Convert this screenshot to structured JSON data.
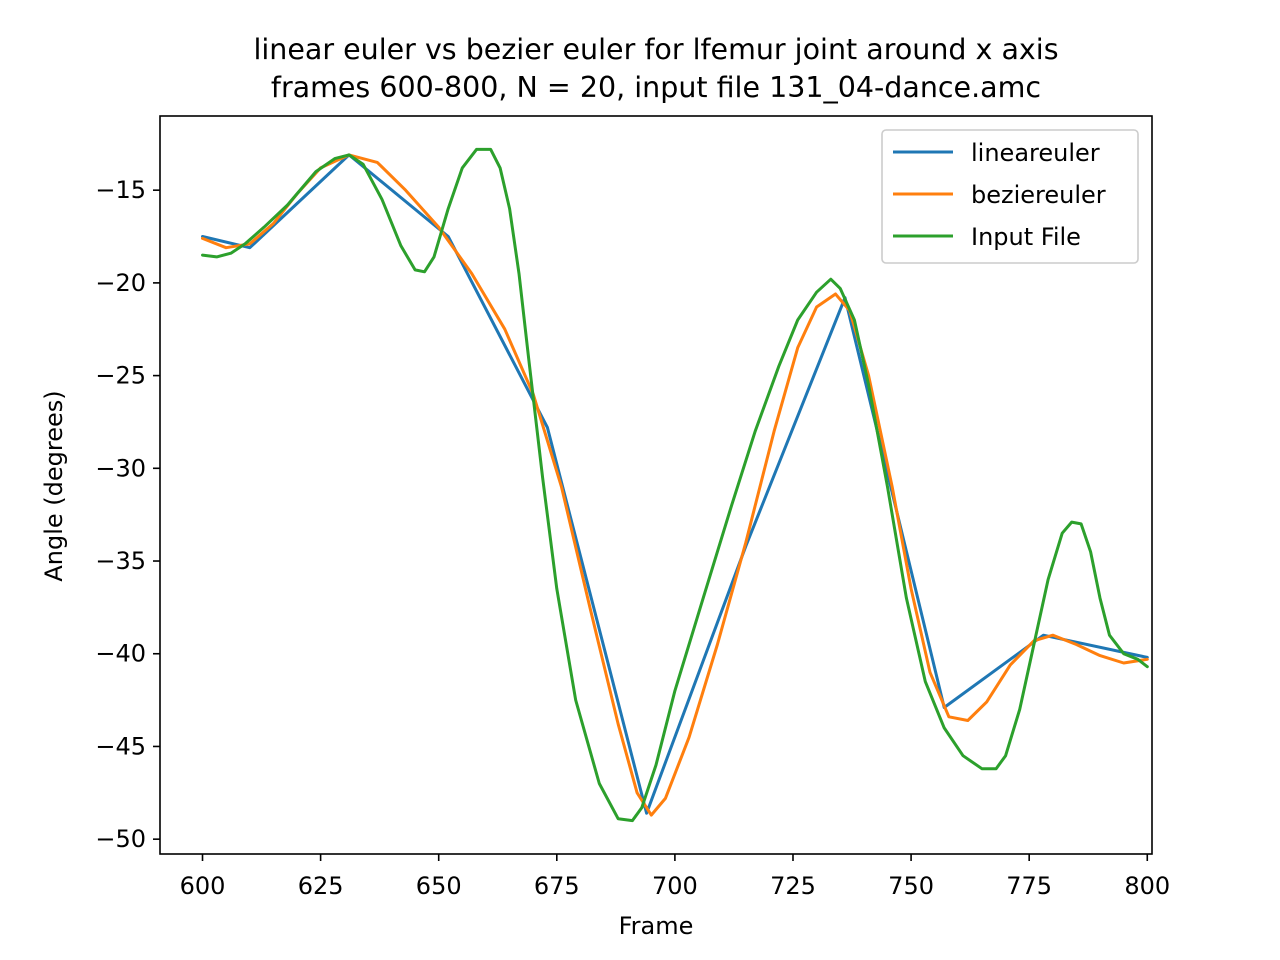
{
  "chart_data": {
    "type": "line",
    "title": "linear euler vs bezier euler for lfemur joint around x axis",
    "subtitle": "frames 600-800, N = 20, input file 131_04-dance.amc",
    "xlabel": "Frame",
    "ylabel": "Angle (degrees)",
    "xlim": [
      591,
      801
    ],
    "ylim": [
      -50.8,
      -11.0
    ],
    "xticks": [
      600,
      625,
      650,
      675,
      700,
      725,
      750,
      775,
      800
    ],
    "yticks": [
      -15,
      -20,
      -25,
      -30,
      -35,
      -40,
      -45,
      -50
    ],
    "xtick_labels": [
      "600",
      "625",
      "650",
      "675",
      "700",
      "725",
      "750",
      "775",
      "800"
    ],
    "ytick_labels": [
      "−15",
      "−20",
      "−25",
      "−30",
      "−35",
      "−40",
      "−45",
      "−50"
    ],
    "grid": false,
    "legend_position": "top-right",
    "series": [
      {
        "name": "lineareuler",
        "color": "#1f77b4",
        "x": [
          600,
          610,
          631,
          652,
          673,
          694,
          715,
          736,
          757,
          778,
          800
        ],
        "y": [
          -17.5,
          -18.1,
          -13.1,
          -17.5,
          -27.8,
          -48.6,
          -34.2,
          -20.8,
          -42.9,
          -39.0,
          -40.2
        ]
      },
      {
        "name": "beziereuler",
        "color": "#ff7f0e",
        "x": [
          600,
          605,
          610,
          615,
          620,
          625,
          631,
          637,
          643,
          650,
          657,
          664,
          670,
          676,
          682,
          688,
          692,
          695,
          698,
          703,
          709,
          715,
          721,
          726,
          730,
          734,
          737,
          741,
          746,
          750,
          754,
          758,
          762,
          766,
          771,
          776,
          780,
          785,
          790,
          795,
          800
        ],
        "y": [
          -17.6,
          -18.1,
          -17.9,
          -16.8,
          -15.2,
          -13.8,
          -13.1,
          -13.5,
          -15.0,
          -17.0,
          -19.5,
          -22.5,
          -26.0,
          -31.0,
          -37.5,
          -43.8,
          -47.5,
          -48.7,
          -47.8,
          -44.5,
          -39.5,
          -34.0,
          -28.0,
          -23.5,
          -21.3,
          -20.6,
          -21.5,
          -25.0,
          -31.0,
          -36.5,
          -41.0,
          -43.4,
          -43.6,
          -42.6,
          -40.6,
          -39.3,
          -39.0,
          -39.5,
          -40.1,
          -40.5,
          -40.3
        ]
      },
      {
        "name": "Input File",
        "color": "#2ca02c",
        "x": [
          600,
          603,
          606,
          609,
          613,
          618,
          624,
          628,
          631,
          634,
          638,
          642,
          645,
          647,
          649,
          652,
          655,
          658,
          661,
          663,
          665,
          667,
          669,
          672,
          675,
          679,
          684,
          688,
          691,
          693,
          696,
          700,
          706,
          712,
          717,
          722,
          726,
          730,
          733,
          735,
          738,
          741,
          745,
          749,
          753,
          757,
          761,
          765,
          768,
          770,
          773,
          776,
          779,
          782,
          784,
          786,
          788,
          790,
          792,
          795,
          798,
          800
        ],
        "y": [
          -18.5,
          -18.6,
          -18.4,
          -17.9,
          -17.0,
          -15.8,
          -14.0,
          -13.3,
          -13.1,
          -13.6,
          -15.5,
          -18.0,
          -19.3,
          -19.4,
          -18.6,
          -16.0,
          -13.8,
          -12.8,
          -12.8,
          -13.8,
          -16.0,
          -19.5,
          -24.0,
          -30.5,
          -36.5,
          -42.5,
          -47.0,
          -48.9,
          -49.0,
          -48.3,
          -46.0,
          -42.0,
          -37.0,
          -32.0,
          -28.0,
          -24.5,
          -22.0,
          -20.5,
          -19.8,
          -20.3,
          -22.0,
          -25.5,
          -31.0,
          -37.0,
          -41.5,
          -44.0,
          -45.5,
          -46.2,
          -46.2,
          -45.5,
          -43.0,
          -39.5,
          -36.0,
          -33.5,
          -32.9,
          -33.0,
          -34.5,
          -37.0,
          -39.0,
          -40.0,
          -40.3,
          -40.7
        ]
      }
    ]
  }
}
